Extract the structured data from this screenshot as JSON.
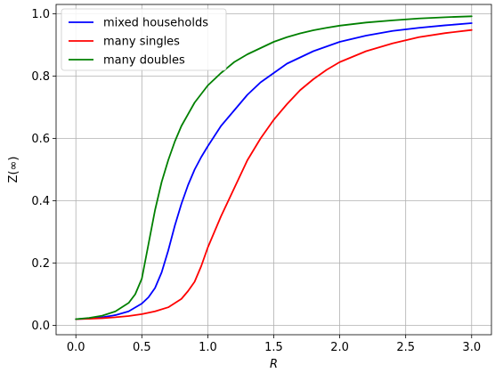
{
  "chart_data": {
    "type": "line",
    "title": "",
    "xlabel": "R",
    "ylabel": "Z(∞)",
    "xlim": [
      -0.15,
      3.15
    ],
    "ylim": [
      -0.03,
      1.03
    ],
    "xticks": [
      0.0,
      0.5,
      1.0,
      1.5,
      2.0,
      2.5,
      3.0
    ],
    "xtick_labels": [
      "0.0",
      "0.5",
      "1.0",
      "1.5",
      "2.0",
      "2.5",
      "3.0"
    ],
    "yticks": [
      0.0,
      0.2,
      0.4,
      0.6,
      0.8,
      1.0
    ],
    "ytick_labels": [
      "0.0",
      "0.2",
      "0.4",
      "0.6",
      "0.8",
      "1.0"
    ],
    "grid": true,
    "legend_position": "top-left",
    "series": [
      {
        "name": "mixed households",
        "color": "#0000ff",
        "x": [
          0.0,
          0.1,
          0.2,
          0.3,
          0.4,
          0.5,
          0.55,
          0.6,
          0.65,
          0.7,
          0.75,
          0.8,
          0.85,
          0.9,
          0.95,
          1.0,
          1.1,
          1.2,
          1.3,
          1.4,
          1.5,
          1.6,
          1.7,
          1.8,
          1.9,
          2.0,
          2.2,
          2.4,
          2.6,
          2.8,
          3.0
        ],
        "y": [
          0.02,
          0.022,
          0.026,
          0.033,
          0.045,
          0.07,
          0.09,
          0.12,
          0.17,
          0.24,
          0.32,
          0.39,
          0.45,
          0.5,
          0.54,
          0.575,
          0.64,
          0.69,
          0.74,
          0.78,
          0.81,
          0.84,
          0.86,
          0.88,
          0.895,
          0.91,
          0.93,
          0.945,
          0.955,
          0.963,
          0.97
        ]
      },
      {
        "name": "many singles",
        "color": "#ff0000",
        "x": [
          0.0,
          0.1,
          0.2,
          0.3,
          0.4,
          0.5,
          0.6,
          0.7,
          0.8,
          0.85,
          0.9,
          0.95,
          1.0,
          1.05,
          1.1,
          1.2,
          1.3,
          1.4,
          1.5,
          1.6,
          1.7,
          1.8,
          1.9,
          2.0,
          2.2,
          2.4,
          2.6,
          2.8,
          3.0
        ],
        "y": [
          0.02,
          0.021,
          0.023,
          0.026,
          0.03,
          0.036,
          0.045,
          0.058,
          0.085,
          0.11,
          0.14,
          0.19,
          0.25,
          0.3,
          0.35,
          0.44,
          0.53,
          0.6,
          0.66,
          0.71,
          0.755,
          0.79,
          0.82,
          0.845,
          0.88,
          0.905,
          0.925,
          0.938,
          0.948
        ]
      },
      {
        "name": "many doubles",
        "color": "#008000",
        "x": [
          0.0,
          0.1,
          0.2,
          0.3,
          0.4,
          0.45,
          0.5,
          0.55,
          0.6,
          0.65,
          0.7,
          0.75,
          0.8,
          0.9,
          1.0,
          1.1,
          1.2,
          1.3,
          1.4,
          1.5,
          1.6,
          1.7,
          1.8,
          1.9,
          2.0,
          2.2,
          2.4,
          2.6,
          2.8,
          3.0
        ],
        "y": [
          0.02,
          0.024,
          0.031,
          0.045,
          0.072,
          0.1,
          0.15,
          0.26,
          0.37,
          0.46,
          0.53,
          0.59,
          0.64,
          0.715,
          0.77,
          0.81,
          0.845,
          0.87,
          0.89,
          0.91,
          0.925,
          0.937,
          0.947,
          0.955,
          0.962,
          0.972,
          0.979,
          0.985,
          0.989,
          0.992
        ]
      }
    ]
  }
}
